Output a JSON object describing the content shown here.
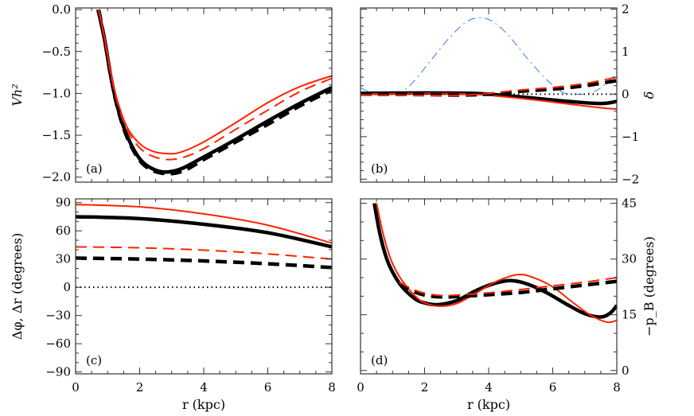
{
  "chart_data": [
    {
      "panel_label": "(a)",
      "type": "line",
      "ylabel": "Vh²",
      "yaxis_side": "left",
      "xlabel": "",
      "xlim": [
        0,
        8
      ],
      "ylim": [
        -2.06,
        0.02
      ],
      "xticks": [
        0,
        2,
        4,
        6,
        8
      ],
      "show_xtick_labels": false,
      "yticks": [
        0.0,
        -0.5,
        -1.0,
        -1.5,
        -2.0
      ],
      "ytick_labels": [
        "0.0",
        "−0.5",
        "−1.0",
        "−1.5",
        "−2.0"
      ],
      "yminor": 0.1,
      "series": [
        {
          "color": "#000000",
          "style": "solid",
          "width": "thick",
          "points": [
            [
              0.7,
              0
            ],
            [
              0.9,
              -0.35
            ],
            [
              1.1,
              -0.8
            ],
            [
              1.3,
              -1.15
            ],
            [
              1.6,
              -1.5
            ],
            [
              2.0,
              -1.78
            ],
            [
              2.4,
              -1.9
            ],
            [
              2.8,
              -1.94
            ],
            [
              3.3,
              -1.9
            ],
            [
              4,
              -1.76
            ],
            [
              5,
              -1.55
            ],
            [
              6,
              -1.33
            ],
            [
              7,
              -1.12
            ],
            [
              8,
              -0.93
            ]
          ]
        },
        {
          "color": "#000000",
          "style": "dashed",
          "width": "thick",
          "points": [
            [
              0.72,
              0
            ],
            [
              0.9,
              -0.35
            ],
            [
              1.1,
              -0.8
            ],
            [
              1.3,
              -1.16
            ],
            [
              1.6,
              -1.52
            ],
            [
              2.0,
              -1.8
            ],
            [
              2.4,
              -1.92
            ],
            [
              2.9,
              -1.96
            ],
            [
              3.4,
              -1.92
            ],
            [
              4,
              -1.79
            ],
            [
              5,
              -1.58
            ],
            [
              6,
              -1.37
            ],
            [
              7,
              -1.15
            ],
            [
              8,
              -0.96
            ]
          ]
        },
        {
          "color": "#ff2200",
          "style": "solid",
          "width": "thin",
          "points": [
            [
              0.72,
              0
            ],
            [
              0.9,
              -0.33
            ],
            [
              1.1,
              -0.75
            ],
            [
              1.3,
              -1.08
            ],
            [
              1.6,
              -1.4
            ],
            [
              2.0,
              -1.6
            ],
            [
              2.4,
              -1.69
            ],
            [
              2.9,
              -1.72
            ],
            [
              3.3,
              -1.7
            ],
            [
              4,
              -1.58
            ],
            [
              5,
              -1.35
            ],
            [
              6,
              -1.11
            ],
            [
              7,
              -0.92
            ],
            [
              8,
              -0.79
            ]
          ]
        },
        {
          "color": "#ff2200",
          "style": "dashed",
          "width": "thin",
          "points": [
            [
              0.72,
              0
            ],
            [
              0.9,
              -0.34
            ],
            [
              1.1,
              -0.77
            ],
            [
              1.3,
              -1.1
            ],
            [
              1.6,
              -1.43
            ],
            [
              2.0,
              -1.65
            ],
            [
              2.4,
              -1.75
            ],
            [
              2.9,
              -1.79
            ],
            [
              3.4,
              -1.76
            ],
            [
              4,
              -1.66
            ],
            [
              5,
              -1.43
            ],
            [
              6,
              -1.2
            ],
            [
              7,
              -0.98
            ],
            [
              8,
              -0.82
            ]
          ]
        }
      ]
    },
    {
      "panel_label": "(b)",
      "type": "line",
      "ylabel": "δ",
      "yaxis_side": "right",
      "xlabel": "",
      "xlim": [
        0,
        8
      ],
      "ylim": [
        -2.07,
        2.03
      ],
      "xticks": [
        0,
        2,
        4,
        6,
        8
      ],
      "show_xtick_labels": false,
      "yticks": [
        2,
        1,
        0,
        -1,
        -2
      ],
      "ytick_labels": [
        "2",
        "1",
        "0",
        "−1",
        "−2"
      ],
      "yminor": 0.2,
      "series": [
        {
          "color": "#000000",
          "style": "dotted",
          "width": "thin",
          "points": [
            [
              0,
              0
            ],
            [
              8,
              0
            ]
          ]
        },
        {
          "color": "#3c78f0",
          "style": "dashdot",
          "width": "hair",
          "points": [
            [
              0,
              0.15
            ],
            [
              0.4,
              0.03
            ],
            [
              0.8,
              0
            ],
            [
              1.2,
              0.03
            ],
            [
              1.6,
              0.25
            ],
            [
              2.2,
              0.8
            ],
            [
              2.8,
              1.35
            ],
            [
              3.3,
              1.7
            ],
            [
              3.7,
              1.8
            ],
            [
              4.1,
              1.72
            ],
            [
              4.6,
              1.4
            ],
            [
              5.2,
              0.85
            ],
            [
              5.8,
              0.35
            ],
            [
              6.3,
              0.05
            ],
            [
              6.7,
              0
            ],
            [
              7.1,
              0.02
            ],
            [
              7.5,
              0.15
            ],
            [
              8,
              0.5
            ]
          ]
        },
        {
          "color": "#000000",
          "style": "solid",
          "width": "thick",
          "points": [
            [
              0,
              0.02
            ],
            [
              2,
              0.03
            ],
            [
              3.5,
              0.02
            ],
            [
              4.5,
              -0.03
            ],
            [
              5.5,
              -0.1
            ],
            [
              6.5,
              -0.17
            ],
            [
              7.5,
              -0.22
            ],
            [
              8,
              -0.17
            ]
          ]
        },
        {
          "color": "#ff2200",
          "style": "solid",
          "width": "thin",
          "points": [
            [
              0,
              0
            ],
            [
              2,
              0.02
            ],
            [
              3.5,
              0
            ],
            [
              4.5,
              -0.06
            ],
            [
              5.5,
              -0.14
            ],
            [
              6.5,
              -0.23
            ],
            [
              7.5,
              -0.32
            ],
            [
              8,
              -0.35
            ]
          ]
        },
        {
          "color": "#000000",
          "style": "dashed",
          "width": "thick",
          "points": [
            [
              0,
              0
            ],
            [
              2,
              -0.01
            ],
            [
              3,
              -0.02
            ],
            [
              4,
              0
            ],
            [
              5,
              0.07
            ],
            [
              6,
              0.12
            ],
            [
              7,
              0.2
            ],
            [
              8,
              0.32
            ]
          ]
        },
        {
          "color": "#ff2200",
          "style": "dashed",
          "width": "thin",
          "points": [
            [
              0,
              -0.02
            ],
            [
              2,
              -0.03
            ],
            [
              3,
              -0.03
            ],
            [
              4,
              0.02
            ],
            [
              5,
              0.1
            ],
            [
              6,
              0.16
            ],
            [
              7,
              0.25
            ],
            [
              8,
              0.4
            ]
          ]
        }
      ]
    },
    {
      "panel_label": "(c)",
      "type": "line",
      "ylabel": "Δφ, Δr (degrees)",
      "yaxis_side": "left",
      "xlabel": "r (kpc)",
      "xlim": [
        0,
        8
      ],
      "ylim": [
        -92,
        94
      ],
      "xticks": [
        0,
        2,
        4,
        6,
        8
      ],
      "show_xtick_labels": true,
      "yticks": [
        90,
        60,
        30,
        0,
        -30,
        -60,
        -90
      ],
      "ytick_labels": [
        "90",
        "60",
        "30",
        "0",
        "−30",
        "−60",
        "−90"
      ],
      "yminor": 10,
      "series": [
        {
          "color": "#000000",
          "style": "dotted",
          "width": "thin",
          "points": [
            [
              0,
              0
            ],
            [
              8,
              0
            ]
          ]
        },
        {
          "color": "#ff2200",
          "style": "solid",
          "width": "thin",
          "points": [
            [
              0,
              88
            ],
            [
              2,
              85.5
            ],
            [
              4,
              78
            ],
            [
              6,
              66
            ],
            [
              8,
              47
            ]
          ]
        },
        {
          "color": "#000000",
          "style": "solid",
          "width": "thick",
          "points": [
            [
              0,
              75
            ],
            [
              2,
              73
            ],
            [
              4,
              67
            ],
            [
              6,
              58
            ],
            [
              8,
              43
            ]
          ]
        },
        {
          "color": "#ff2200",
          "style": "dashed",
          "width": "thin",
          "points": [
            [
              0,
              43
            ],
            [
              2,
              42
            ],
            [
              4,
              39.5
            ],
            [
              6,
              35.5
            ],
            [
              8,
              30
            ]
          ]
        },
        {
          "color": "#000000",
          "style": "dashed",
          "width": "thick",
          "points": [
            [
              0,
              31
            ],
            [
              2,
              30
            ],
            [
              4,
              28
            ],
            [
              6,
              25
            ],
            [
              8,
              21
            ]
          ]
        }
      ]
    },
    {
      "panel_label": "(d)",
      "type": "line",
      "ylabel": "−p_B (degrees)",
      "yaxis_side": "right",
      "xlabel": "r (kpc)",
      "xlim": [
        0,
        8
      ],
      "ylim": [
        -0.9,
        46.2
      ],
      "xticks": [
        0,
        2,
        4,
        6,
        8
      ],
      "show_xtick_labels": true,
      "yticks": [
        45,
        30,
        15,
        0
      ],
      "ytick_labels": [
        "45",
        "30",
        "15",
        "0"
      ],
      "yminor": 5,
      "series": [
        {
          "color": "#000000",
          "style": "solid",
          "width": "thick",
          "points": [
            [
              0.43,
              45
            ],
            [
              0.6,
              37
            ],
            [
              0.8,
              30.5
            ],
            [
              1.0,
              26.5
            ],
            [
              1.3,
              22.5
            ],
            [
              1.7,
              19.3
            ],
            [
              2.0,
              18.2
            ],
            [
              2.4,
              17.7
            ],
            [
              3.0,
              18.8
            ],
            [
              3.6,
              21.5
            ],
            [
              4.2,
              23.5
            ],
            [
              4.7,
              24.2
            ],
            [
              5.2,
              23.3
            ],
            [
              5.8,
              21
            ],
            [
              6.4,
              18
            ],
            [
              7.0,
              15.3
            ],
            [
              7.5,
              14.4
            ],
            [
              7.8,
              15.5
            ],
            [
              8,
              17.5
            ]
          ]
        },
        {
          "color": "#ff2200",
          "style": "solid",
          "width": "thin",
          "points": [
            [
              0.5,
              45
            ],
            [
              0.7,
              37
            ],
            [
              0.9,
              31
            ],
            [
              1.1,
              27
            ],
            [
              1.4,
              23
            ],
            [
              1.8,
              19.3
            ],
            [
              2.1,
              17.9
            ],
            [
              2.5,
              17.3
            ],
            [
              3.0,
              18
            ],
            [
              3.6,
              20.8
            ],
            [
              4.2,
              23.8
            ],
            [
              4.9,
              25.8
            ],
            [
              5.4,
              25
            ],
            [
              6.0,
              22.5
            ],
            [
              6.6,
              18.5
            ],
            [
              7.2,
              14.8
            ],
            [
              7.7,
              13
            ],
            [
              8,
              13.5
            ]
          ]
        },
        {
          "color": "#000000",
          "style": "dashed",
          "width": "thick",
          "points": [
            [
              1.2,
              23.5
            ],
            [
              1.6,
              21.5
            ],
            [
              2.0,
              20.3
            ],
            [
              2.5,
              19.8
            ],
            [
              3,
              19.9
            ],
            [
              4,
              20.4
            ],
            [
              5,
              21
            ],
            [
              6,
              22
            ],
            [
              7,
              23
            ],
            [
              8,
              24
            ]
          ]
        },
        {
          "color": "#ff2200",
          "style": "dashed",
          "width": "thin",
          "points": [
            [
              1.2,
              23.8
            ],
            [
              1.6,
              22
            ],
            [
              2.0,
              20.8
            ],
            [
              2.5,
              20.2
            ],
            [
              3,
              20.3
            ],
            [
              4,
              20.9
            ],
            [
              5,
              21.8
            ],
            [
              6,
              22.8
            ],
            [
              7,
              23.8
            ],
            [
              8,
              25
            ]
          ]
        }
      ]
    }
  ]
}
